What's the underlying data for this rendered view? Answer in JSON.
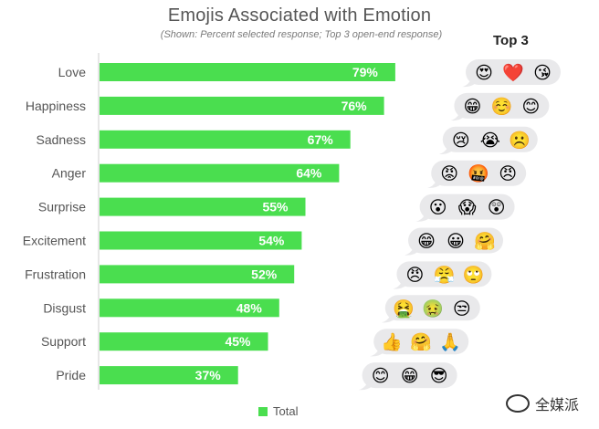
{
  "title": "Emojis Associated with Emotion",
  "subtitle": "(Shown: Percent selected response; Top 3 open-end response)",
  "top3_label": "Top 3",
  "legend_label": "Total",
  "watermark_text": "全媒派",
  "colors": {
    "bar": "#4ade4f",
    "bubble": "#e9e9eb"
  },
  "chart_data": {
    "type": "bar",
    "orientation": "horizontal",
    "title": "Emojis Associated with Emotion",
    "subtitle": "(Shown: Percent selected response; Top 3 open-end response)",
    "categories": [
      "Love",
      "Happiness",
      "Sadness",
      "Anger",
      "Surprise",
      "Excitement",
      "Frustration",
      "Disgust",
      "Support",
      "Pride"
    ],
    "series": [
      {
        "name": "Total",
        "values": [
          79,
          76,
          67,
          64,
          55,
          54,
          52,
          48,
          45,
          37
        ]
      }
    ],
    "value_labels": [
      "79%",
      "76%",
      "67%",
      "64%",
      "55%",
      "54%",
      "52%",
      "48%",
      "45%",
      "37%"
    ],
    "xlim": [
      0,
      100
    ],
    "grid": false,
    "legend": "bottom-center",
    "top3_emojis": [
      [
        "😍",
        "❤️",
        "😘"
      ],
      [
        "😁",
        "☺️",
        "😊"
      ],
      [
        "😢",
        "😭",
        "☹️"
      ],
      [
        "😡",
        "🤬",
        "😠"
      ],
      [
        "😮",
        "😱",
        "😲"
      ],
      [
        "😁",
        "😀",
        "🤗"
      ],
      [
        "😠",
        "😤",
        "🙄"
      ],
      [
        "🤮",
        "🤢",
        "😒"
      ],
      [
        "👍",
        "🤗",
        "🙏"
      ],
      [
        "😊",
        "😁",
        "😎"
      ]
    ]
  }
}
